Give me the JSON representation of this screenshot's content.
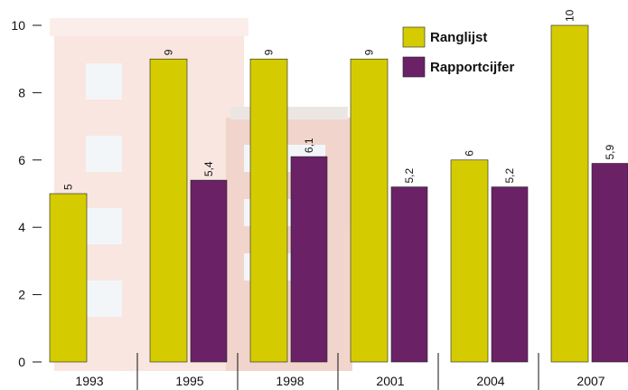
{
  "chart_data": {
    "type": "bar",
    "categories": [
      "1993",
      "1995",
      "1998",
      "2001",
      "2004",
      "2007"
    ],
    "series": [
      {
        "name": "Ranglijst",
        "color": "#d4cc00",
        "values": [
          5,
          9,
          9,
          9,
          6,
          10
        ]
      },
      {
        "name": "Rapportcijfer",
        "color": "#6b2166",
        "values": [
          null,
          5.4,
          6.1,
          5.2,
          5.2,
          5.9
        ],
        "value_labels": [
          null,
          "5,4",
          "6,1",
          "5,2",
          "5,2",
          "5,9"
        ]
      }
    ],
    "ylim": [
      0,
      10
    ],
    "yticks": [
      0,
      2,
      4,
      6,
      8,
      10
    ],
    "legend": "top-right"
  }
}
